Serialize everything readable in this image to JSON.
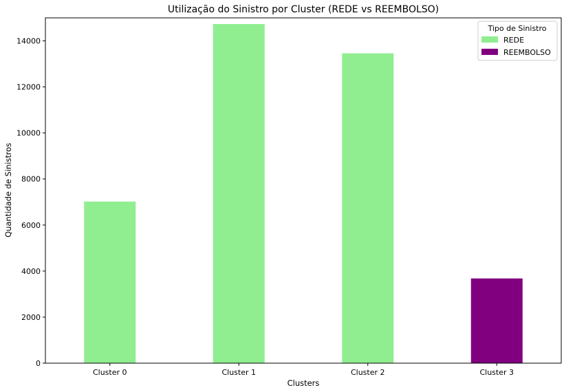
{
  "chart_data": {
    "type": "bar",
    "title": "Utilização do Sinistro por Cluster (REDE vs REEMBOLSO)",
    "xlabel": "Clusters",
    "ylabel": "Quantidade de Sinistros",
    "categories": [
      "Cluster 0",
      "Cluster 1",
      "Cluster 2",
      "Cluster 3"
    ],
    "series": [
      {
        "name": "REDE",
        "color": "#90ee90",
        "values": [
          7020,
          14730,
          13460,
          0
        ]
      },
      {
        "name": "REEMBOLSO",
        "color": "#800080",
        "values": [
          0,
          0,
          0,
          3680
        ]
      }
    ],
    "ylim": [
      0,
      15000
    ],
    "yticks": [
      0,
      2000,
      4000,
      6000,
      8000,
      10000,
      12000,
      14000
    ],
    "grid": false,
    "legend": {
      "title": "Tipo de Sinistro",
      "placement": "top-right"
    }
  }
}
